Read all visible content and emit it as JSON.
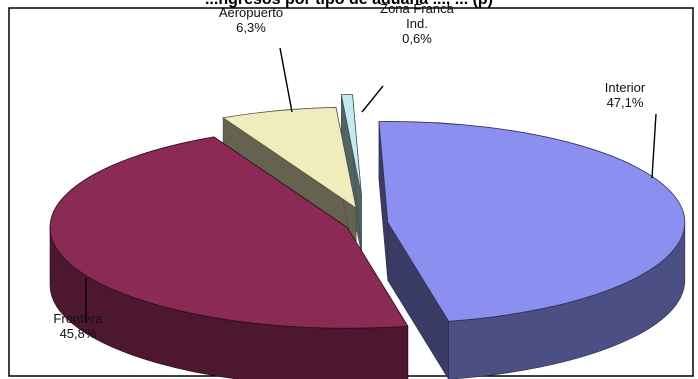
{
  "chart_data": {
    "type": "pie",
    "title": "...ngresos por tipo de aduana ..., ... (p)",
    "style": "3d-exploded",
    "slices": [
      {
        "label": "Interior",
        "value": 47.1,
        "value_text": "47,1%",
        "color": "#8b8ff0"
      },
      {
        "label": "Frontera",
        "value": 45.8,
        "value_text": "45,8%",
        "color": "#8a2a55"
      },
      {
        "label": "Aeropuerto",
        "value": 6.3,
        "value_text": "6,3%",
        "color": "#f0ecbe"
      },
      {
        "label": "Zona Franca Ind.",
        "label_lines": [
          "Zona Franca",
          "Ind."
        ],
        "value": 0.6,
        "value_text": "0,6%",
        "color": "#c4ecef"
      }
    ],
    "legend": "none"
  }
}
